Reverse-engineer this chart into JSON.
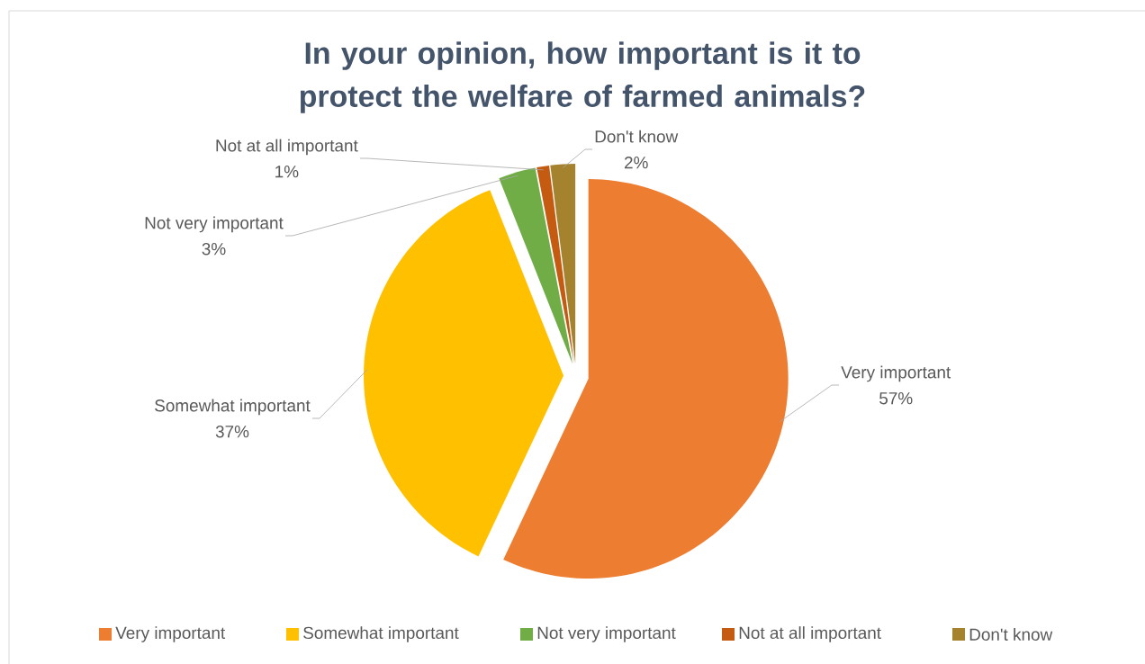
{
  "chart_data": {
    "type": "pie",
    "title": "In your opinion, how important is it to protect the welfare of farmed animals?",
    "categories": [
      "Very important",
      "Somewhat important",
      "Not very important",
      "Not at all important",
      "Don't know"
    ],
    "values": [
      57,
      37,
      3,
      1,
      2
    ],
    "value_labels": [
      "57%",
      "37%",
      "3%",
      "1%",
      "2%"
    ],
    "colors": [
      "#ed7d31",
      "#ffc000",
      "#70ad47",
      "#c55a11",
      "#a5822e"
    ],
    "legend": "bottom"
  }
}
